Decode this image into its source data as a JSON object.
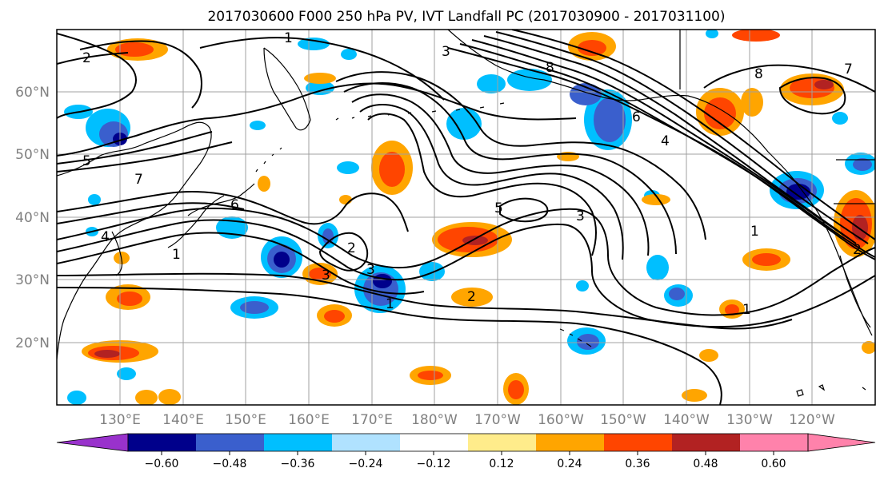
{
  "title": "2017030600 F000 250 hPa PV, IVT Landfall PC (2017030900 - 2017031100)",
  "lat_labels": [
    "60°N",
    "50°N",
    "40°N",
    "30°N",
    "20°N"
  ],
  "lon_labels": [
    "130°E",
    "140°E",
    "150°E",
    "160°E",
    "170°E",
    "180°W",
    "170°W",
    "160°W",
    "150°W",
    "140°W",
    "130°W",
    "120°W"
  ],
  "colorbar": {
    "levels": [
      "−0.60",
      "−0.48",
      "−0.36",
      "−0.24",
      "−0.12",
      "0.12",
      "0.24",
      "0.36",
      "0.48",
      "0.60"
    ],
    "colors": [
      "#9932cc",
      "#00008b",
      "#3a5fcd",
      "#00bfff",
      "#b0e2ff",
      "#ffffff",
      "#ffec8b",
      "#ffa500",
      "#ff4500",
      "#b22222",
      "#ff82ab"
    ]
  },
  "contour_labels": [
    "1",
    "2",
    "3",
    "4",
    "5",
    "6",
    "7",
    "8"
  ]
}
